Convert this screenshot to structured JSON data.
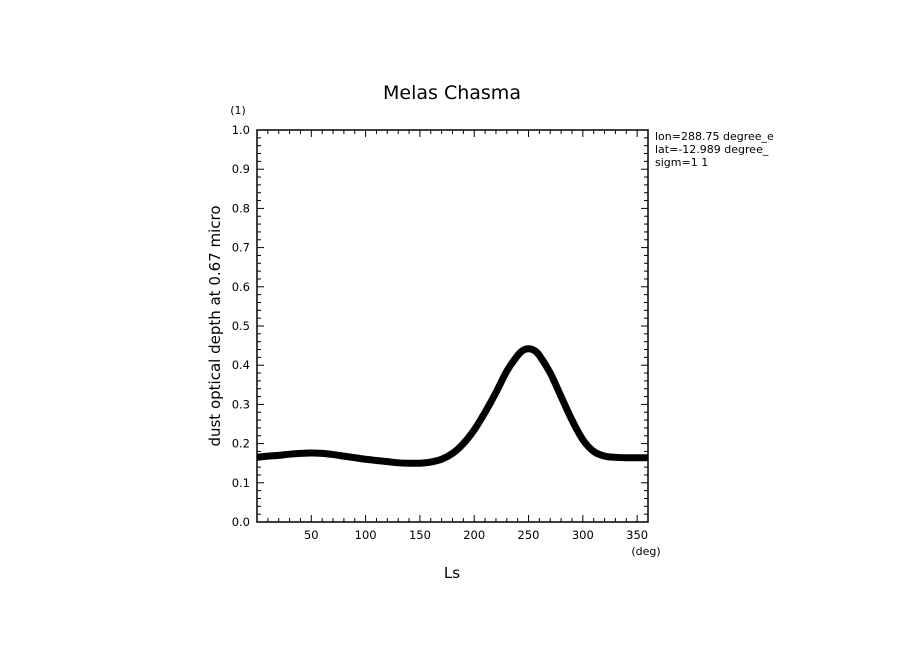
{
  "chart_data": {
    "type": "line",
    "title": "Melas Chasma",
    "xlabel": "Ls",
    "xunit": "(deg)",
    "ylabel": "dust optical depth at 0.67 micro",
    "yunit": "(1)",
    "xlim": [
      0,
      360
    ],
    "ylim": [
      0.0,
      1.0
    ],
    "xticks": [
      50,
      100,
      150,
      200,
      250,
      300,
      350
    ],
    "xtick_labels": [
      "50",
      "100",
      "150",
      "200",
      "250",
      "300",
      "350"
    ],
    "yticks": [
      0.0,
      0.1,
      0.2,
      0.3,
      0.4,
      0.5,
      0.6,
      0.7,
      0.8,
      0.9,
      1.0
    ],
    "ytick_labels": [
      "0.0",
      "0.1",
      "0.2",
      "0.3",
      "0.4",
      "0.5",
      "0.6",
      "0.7",
      "0.8",
      "0.9",
      "1.0"
    ],
    "grid": false,
    "annotations": [
      "lon=288.75 degree_e",
      "lat=-12.989 degree_",
      "sigm=1 1"
    ],
    "series": [
      {
        "x": [
          0,
          10,
          20,
          30,
          40,
          50,
          60,
          70,
          80,
          90,
          100,
          110,
          120,
          130,
          140,
          150,
          160,
          170,
          180,
          190,
          200,
          210,
          220,
          230,
          240,
          245,
          250,
          255,
          260,
          270,
          280,
          290,
          300,
          310,
          320,
          330,
          340,
          350,
          360
        ],
        "values": [
          0.165,
          0.168,
          0.17,
          0.173,
          0.175,
          0.176,
          0.175,
          0.172,
          0.168,
          0.164,
          0.16,
          0.157,
          0.154,
          0.151,
          0.15,
          0.15,
          0.153,
          0.16,
          0.175,
          0.2,
          0.235,
          0.28,
          0.33,
          0.385,
          0.425,
          0.438,
          0.442,
          0.438,
          0.425,
          0.38,
          0.32,
          0.26,
          0.21,
          0.18,
          0.168,
          0.165,
          0.164,
          0.164,
          0.164
        ],
        "color": "#000000"
      }
    ]
  }
}
